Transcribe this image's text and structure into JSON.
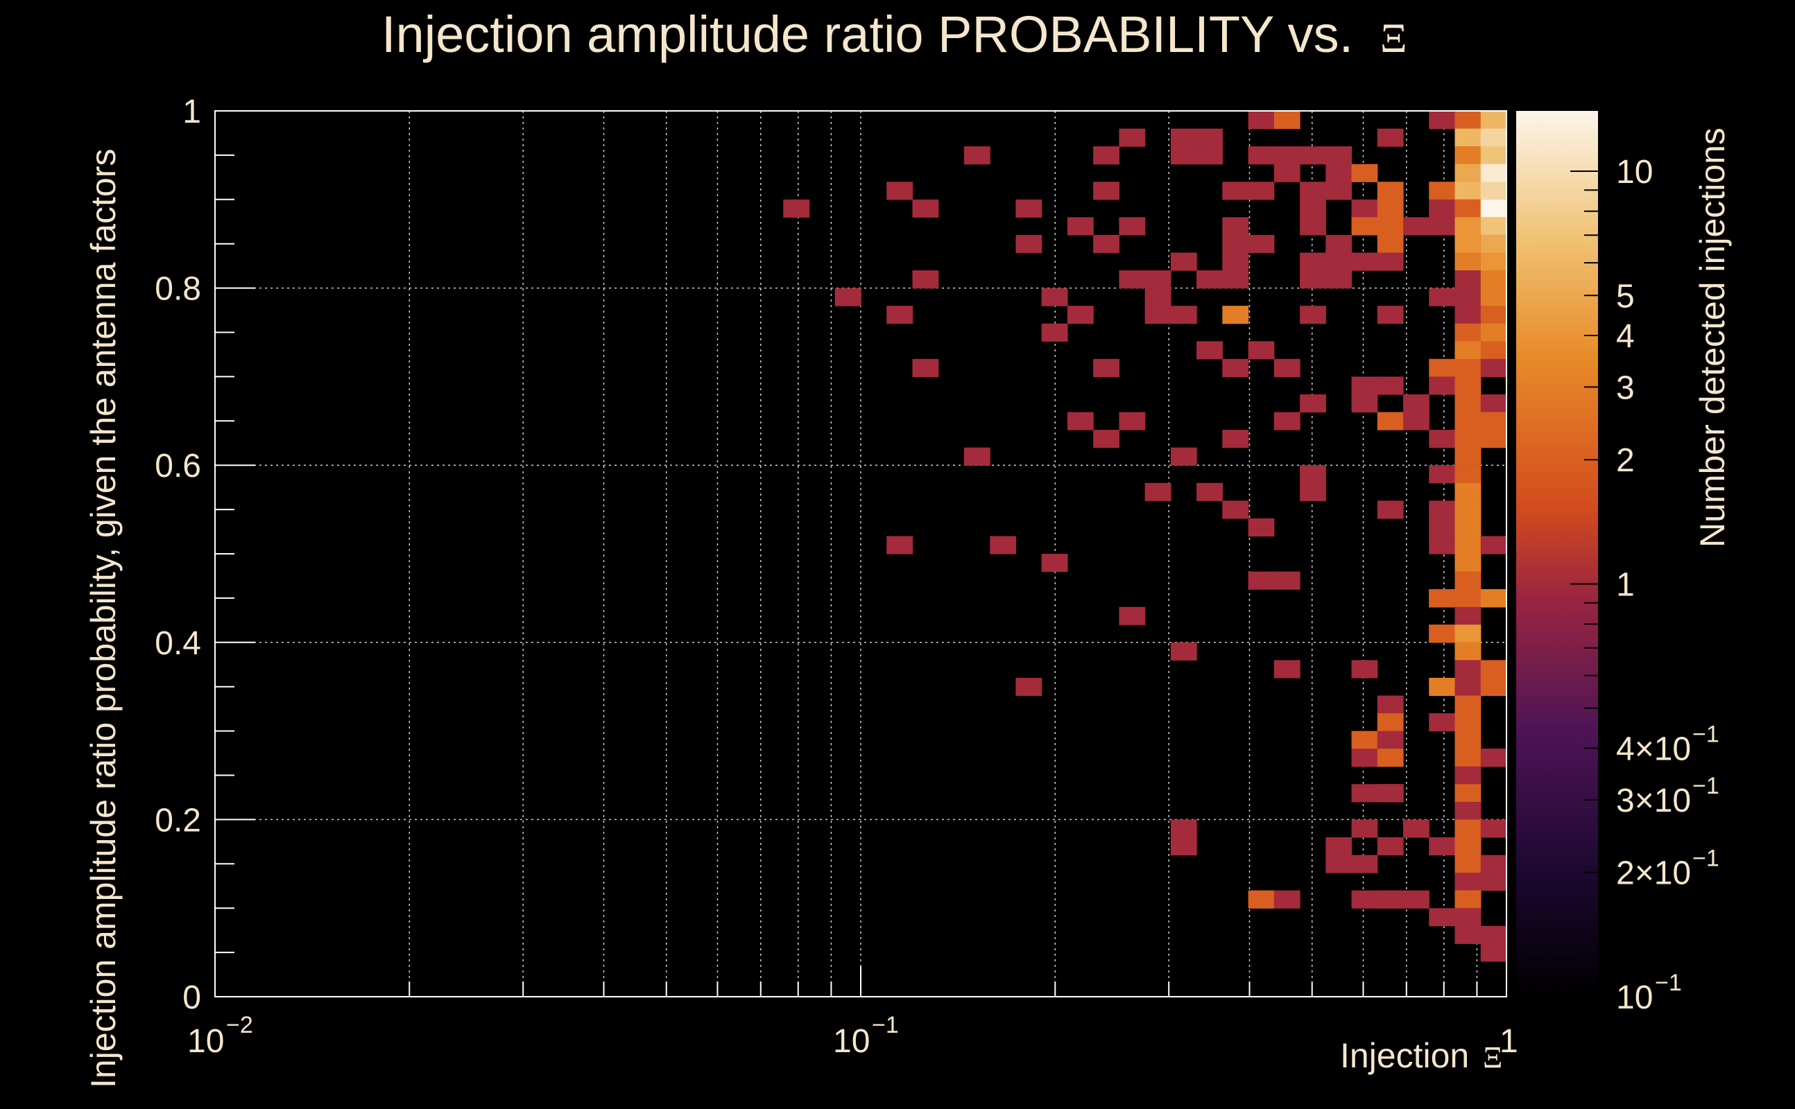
{
  "chart_data": {
    "type": "heatmap",
    "title": "Injection amplitude ratio PROBABILITY vs.",
    "title_symbol": "Ξ",
    "xlabel": "Injection",
    "xlabel_symbol": "Ξ",
    "ylabel": "Injection amplitude ratio probability, given the antenna factors",
    "zlabel": "Number detected injections",
    "x_scale": "log",
    "xlim": [
      0.01,
      1
    ],
    "ylim": [
      0,
      1
    ],
    "z_scale": "log",
    "zlim": [
      0.1,
      14
    ],
    "x_bins": 50,
    "y_bins": 50,
    "x_tick_labels": [
      {
        "value": 0.01,
        "base": "10",
        "exp": "−2"
      },
      {
        "value": 0.1,
        "base": "10",
        "exp": "−1"
      },
      {
        "value": 1,
        "base": "1",
        "exp": ""
      }
    ],
    "y_tick_labels": [
      "0",
      "0.2",
      "0.4",
      "0.6",
      "0.8",
      "1"
    ],
    "colorbar_tick_labels": [
      {
        "value": 0.1,
        "mant": "",
        "base": "10",
        "exp": "−1"
      },
      {
        "value": 0.2,
        "mant": "2×",
        "base": "10",
        "exp": "−1"
      },
      {
        "value": 0.3,
        "mant": "3×",
        "base": "10",
        "exp": "−1"
      },
      {
        "value": 0.4,
        "mant": "4×",
        "base": "10",
        "exp": "−1"
      },
      {
        "value": 1,
        "mant": "",
        "base": "1",
        "exp": ""
      },
      {
        "value": 2,
        "mant": "",
        "base": "2",
        "exp": ""
      },
      {
        "value": 3,
        "mant": "",
        "base": "3",
        "exp": ""
      },
      {
        "value": 4,
        "mant": "",
        "base": "4",
        "exp": ""
      },
      {
        "value": 5,
        "mant": "",
        "base": "5",
        "exp": ""
      },
      {
        "value": 10,
        "mant": "",
        "base": "10",
        "exp": ""
      }
    ],
    "grid": true,
    "colormap": [
      "#000000",
      "#2a0a3a",
      "#6a1a5a",
      "#a82a3a",
      "#d8501c",
      "#e8902a",
      "#f0c070",
      "#f8f0e0"
    ],
    "cells": [
      {
        "x": 0.42,
        "y": 0.99,
        "z": 1
      },
      {
        "x": 0.46,
        "y": 0.99,
        "z": 2
      },
      {
        "x": 0.76,
        "y": 0.99,
        "z": 1
      },
      {
        "x": 0.84,
        "y": 0.99,
        "z": 1
      },
      {
        "x": 0.88,
        "y": 0.99,
        "z": 2
      },
      {
        "x": 0.96,
        "y": 0.99,
        "z": 6
      },
      {
        "x": 0.27,
        "y": 0.97,
        "z": 1
      },
      {
        "x": 0.32,
        "y": 0.97,
        "z": 1
      },
      {
        "x": 0.35,
        "y": 0.97,
        "z": 1
      },
      {
        "x": 0.69,
        "y": 0.97,
        "z": 1
      },
      {
        "x": 0.88,
        "y": 0.97,
        "z": 6
      },
      {
        "x": 0.96,
        "y": 0.97,
        "z": 9
      },
      {
        "x": 0.15,
        "y": 0.95,
        "z": 1
      },
      {
        "x": 0.24,
        "y": 0.95,
        "z": 1
      },
      {
        "x": 0.32,
        "y": 0.95,
        "z": 1
      },
      {
        "x": 0.35,
        "y": 0.95,
        "z": 1
      },
      {
        "x": 0.42,
        "y": 0.95,
        "z": 1
      },
      {
        "x": 0.46,
        "y": 0.95,
        "z": 1
      },
      {
        "x": 0.5,
        "y": 0.95,
        "z": 1
      },
      {
        "x": 0.55,
        "y": 0.95,
        "z": 1
      },
      {
        "x": 0.84,
        "y": 0.95,
        "z": 1
      },
      {
        "x": 0.88,
        "y": 0.95,
        "z": 3
      },
      {
        "x": 0.96,
        "y": 0.95,
        "z": 7
      },
      {
        "x": 0.46,
        "y": 0.93,
        "z": 1
      },
      {
        "x": 0.55,
        "y": 0.93,
        "z": 1
      },
      {
        "x": 0.6,
        "y": 0.93,
        "z": 2
      },
      {
        "x": 0.88,
        "y": 0.93,
        "z": 5
      },
      {
        "x": 0.96,
        "y": 0.93,
        "z": 12
      },
      {
        "x": 0.12,
        "y": 0.91,
        "z": 1
      },
      {
        "x": 0.24,
        "y": 0.91,
        "z": 1
      },
      {
        "x": 0.38,
        "y": 0.91,
        "z": 1
      },
      {
        "x": 0.42,
        "y": 0.91,
        "z": 1
      },
      {
        "x": 0.5,
        "y": 0.91,
        "z": 1
      },
      {
        "x": 0.55,
        "y": 0.91,
        "z": 1
      },
      {
        "x": 0.69,
        "y": 0.91,
        "z": 2
      },
      {
        "x": 0.76,
        "y": 0.91,
        "z": 2
      },
      {
        "x": 0.84,
        "y": 0.91,
        "z": 2
      },
      {
        "x": 0.88,
        "y": 0.91,
        "z": 6
      },
      {
        "x": 0.96,
        "y": 0.91,
        "z": 9
      },
      {
        "x": 0.08,
        "y": 0.89,
        "z": 1
      },
      {
        "x": 0.13,
        "y": 0.89,
        "z": 1
      },
      {
        "x": 0.18,
        "y": 0.89,
        "z": 1
      },
      {
        "x": 0.5,
        "y": 0.89,
        "z": 1
      },
      {
        "x": 0.6,
        "y": 0.89,
        "z": 1
      },
      {
        "x": 0.65,
        "y": 0.89,
        "z": 2
      },
      {
        "x": 0.8,
        "y": 0.89,
        "z": 1
      },
      {
        "x": 0.84,
        "y": 0.89,
        "z": 1
      },
      {
        "x": 0.88,
        "y": 0.89,
        "z": 2
      },
      {
        "x": 0.92,
        "y": 0.89,
        "z": 3
      },
      {
        "x": 0.96,
        "y": 0.89,
        "z": 14
      },
      {
        "x": 0.21,
        "y": 0.87,
        "z": 1
      },
      {
        "x": 0.27,
        "y": 0.87,
        "z": 1
      },
      {
        "x": 0.38,
        "y": 0.87,
        "z": 1
      },
      {
        "x": 0.5,
        "y": 0.87,
        "z": 1
      },
      {
        "x": 0.6,
        "y": 0.87,
        "z": 2
      },
      {
        "x": 0.65,
        "y": 0.87,
        "z": 2
      },
      {
        "x": 0.73,
        "y": 0.87,
        "z": 1
      },
      {
        "x": 0.8,
        "y": 0.87,
        "z": 1
      },
      {
        "x": 0.88,
        "y": 0.87,
        "z": 4
      },
      {
        "x": 0.92,
        "y": 0.87,
        "z": 2
      },
      {
        "x": 0.96,
        "y": 0.87,
        "z": 7
      },
      {
        "x": 0.18,
        "y": 0.85,
        "z": 1
      },
      {
        "x": 0.24,
        "y": 0.85,
        "z": 1
      },
      {
        "x": 0.38,
        "y": 0.85,
        "z": 1
      },
      {
        "x": 0.42,
        "y": 0.85,
        "z": 1
      },
      {
        "x": 0.57,
        "y": 0.85,
        "z": 1
      },
      {
        "x": 0.65,
        "y": 0.85,
        "z": 2
      },
      {
        "x": 0.88,
        "y": 0.85,
        "z": 4
      },
      {
        "x": 0.92,
        "y": 0.85,
        "z": 1
      },
      {
        "x": 0.96,
        "y": 0.85,
        "z": 5
      },
      {
        "x": 0.32,
        "y": 0.83,
        "z": 1
      },
      {
        "x": 0.38,
        "y": 0.83,
        "z": 1
      },
      {
        "x": 0.5,
        "y": 0.83,
        "z": 1
      },
      {
        "x": 0.57,
        "y": 0.83,
        "z": 1
      },
      {
        "x": 0.6,
        "y": 0.83,
        "z": 1
      },
      {
        "x": 0.69,
        "y": 0.83,
        "z": 1
      },
      {
        "x": 0.88,
        "y": 0.83,
        "z": 3
      },
      {
        "x": 0.92,
        "y": 0.83,
        "z": 1
      },
      {
        "x": 0.96,
        "y": 0.83,
        "z": 4
      },
      {
        "x": 0.13,
        "y": 0.81,
        "z": 1
      },
      {
        "x": 0.27,
        "y": 0.81,
        "z": 1
      },
      {
        "x": 0.29,
        "y": 0.81,
        "z": 1
      },
      {
        "x": 0.35,
        "y": 0.81,
        "z": 1
      },
      {
        "x": 0.38,
        "y": 0.81,
        "z": 1
      },
      {
        "x": 0.5,
        "y": 0.81,
        "z": 1
      },
      {
        "x": 0.55,
        "y": 0.81,
        "z": 1
      },
      {
        "x": 0.88,
        "y": 0.81,
        "z": 1
      },
      {
        "x": 0.96,
        "y": 0.81,
        "z": 3
      },
      {
        "x": 0.095,
        "y": 0.79,
        "z": 1
      },
      {
        "x": 0.2,
        "y": 0.79,
        "z": 1
      },
      {
        "x": 0.29,
        "y": 0.79,
        "z": 1
      },
      {
        "x": 0.8,
        "y": 0.79,
        "z": 1
      },
      {
        "x": 0.84,
        "y": 0.79,
        "z": 1
      },
      {
        "x": 0.88,
        "y": 0.79,
        "z": 1
      },
      {
        "x": 0.92,
        "y": 0.79,
        "z": 1
      },
      {
        "x": 0.96,
        "y": 0.79,
        "z": 3
      },
      {
        "x": 0.115,
        "y": 0.77,
        "z": 1
      },
      {
        "x": 0.22,
        "y": 0.77,
        "z": 1
      },
      {
        "x": 0.29,
        "y": 0.77,
        "z": 1
      },
      {
        "x": 0.32,
        "y": 0.77,
        "z": 1
      },
      {
        "x": 0.38,
        "y": 0.77,
        "z": 3
      },
      {
        "x": 0.5,
        "y": 0.77,
        "z": 1
      },
      {
        "x": 0.65,
        "y": 0.77,
        "z": 1
      },
      {
        "x": 0.88,
        "y": 0.77,
        "z": 1
      },
      {
        "x": 0.92,
        "y": 0.77,
        "z": 2
      },
      {
        "x": 0.2,
        "y": 0.75,
        "z": 1
      },
      {
        "x": 0.88,
        "y": 0.75,
        "z": 2
      },
      {
        "x": 0.96,
        "y": 0.75,
        "z": 3
      },
      {
        "x": 0.35,
        "y": 0.73,
        "z": 1
      },
      {
        "x": 0.42,
        "y": 0.73,
        "z": 1
      },
      {
        "x": 0.84,
        "y": 0.73,
        "z": 2
      },
      {
        "x": 0.88,
        "y": 0.73,
        "z": 3
      },
      {
        "x": 0.96,
        "y": 0.73,
        "z": 2
      },
      {
        "x": 0.13,
        "y": 0.71,
        "z": 1
      },
      {
        "x": 0.24,
        "y": 0.71,
        "z": 1
      },
      {
        "x": 0.38,
        "y": 0.71,
        "z": 1
      },
      {
        "x": 0.46,
        "y": 0.71,
        "z": 1
      },
      {
        "x": 0.76,
        "y": 0.71,
        "z": 2
      },
      {
        "x": 0.88,
        "y": 0.71,
        "z": 2
      },
      {
        "x": 0.96,
        "y": 0.71,
        "z": 1
      },
      {
        "x": 0.6,
        "y": 0.69,
        "z": 1
      },
      {
        "x": 0.65,
        "y": 0.69,
        "z": 1
      },
      {
        "x": 0.8,
        "y": 0.69,
        "z": 1
      },
      {
        "x": 0.88,
        "y": 0.69,
        "z": 2
      },
      {
        "x": 0.5,
        "y": 0.67,
        "z": 1
      },
      {
        "x": 0.6,
        "y": 0.67,
        "z": 1
      },
      {
        "x": 0.73,
        "y": 0.67,
        "z": 1
      },
      {
        "x": 0.84,
        "y": 0.67,
        "z": 1
      },
      {
        "x": 0.88,
        "y": 0.67,
        "z": 2
      },
      {
        "x": 0.92,
        "y": 0.67,
        "z": 1
      },
      {
        "x": 0.22,
        "y": 0.65,
        "z": 1
      },
      {
        "x": 0.27,
        "y": 0.65,
        "z": 1
      },
      {
        "x": 0.46,
        "y": 0.65,
        "z": 1
      },
      {
        "x": 0.69,
        "y": 0.65,
        "z": 2
      },
      {
        "x": 0.73,
        "y": 0.65,
        "z": 1
      },
      {
        "x": 0.88,
        "y": 0.65,
        "z": 2
      },
      {
        "x": 0.96,
        "y": 0.65,
        "z": 2
      },
      {
        "x": 0.24,
        "y": 0.63,
        "z": 1
      },
      {
        "x": 0.38,
        "y": 0.63,
        "z": 1
      },
      {
        "x": 0.8,
        "y": 0.63,
        "z": 1
      },
      {
        "x": 0.84,
        "y": 0.63,
        "z": 1
      },
      {
        "x": 0.88,
        "y": 0.63,
        "z": 2
      },
      {
        "x": 0.96,
        "y": 0.63,
        "z": 2
      },
      {
        "x": 0.15,
        "y": 0.61,
        "z": 1
      },
      {
        "x": 0.32,
        "y": 0.61,
        "z": 1
      },
      {
        "x": 0.84,
        "y": 0.61,
        "z": 4
      },
      {
        "x": 0.88,
        "y": 0.61,
        "z": 2
      },
      {
        "x": 0.5,
        "y": 0.59,
        "z": 1
      },
      {
        "x": 0.8,
        "y": 0.59,
        "z": 1
      },
      {
        "x": 0.84,
        "y": 0.59,
        "z": 1
      },
      {
        "x": 0.88,
        "y": 0.59,
        "z": 2
      },
      {
        "x": 0.29,
        "y": 0.57,
        "z": 1
      },
      {
        "x": 0.35,
        "y": 0.57,
        "z": 1
      },
      {
        "x": 0.5,
        "y": 0.57,
        "z": 1
      },
      {
        "x": 0.84,
        "y": 0.57,
        "z": 2
      },
      {
        "x": 0.88,
        "y": 0.57,
        "z": 3
      },
      {
        "x": 0.38,
        "y": 0.55,
        "z": 1
      },
      {
        "x": 0.65,
        "y": 0.55,
        "z": 1
      },
      {
        "x": 0.8,
        "y": 0.55,
        "z": 1
      },
      {
        "x": 0.84,
        "y": 0.55,
        "z": 1
      },
      {
        "x": 0.88,
        "y": 0.55,
        "z": 3
      },
      {
        "x": 0.42,
        "y": 0.53,
        "z": 1
      },
      {
        "x": 0.76,
        "y": 0.53,
        "z": 1
      },
      {
        "x": 0.88,
        "y": 0.53,
        "z": 3
      },
      {
        "x": 0.12,
        "y": 0.51,
        "z": 1
      },
      {
        "x": 0.165,
        "y": 0.51,
        "z": 1
      },
      {
        "x": 0.8,
        "y": 0.51,
        "z": 1
      },
      {
        "x": 0.88,
        "y": 0.51,
        "z": 3
      },
      {
        "x": 0.96,
        "y": 0.51,
        "z": 1
      },
      {
        "x": 0.2,
        "y": 0.49,
        "z": 1
      },
      {
        "x": 0.84,
        "y": 0.49,
        "z": 1
      },
      {
        "x": 0.88,
        "y": 0.49,
        "z": 3
      },
      {
        "x": 0.42,
        "y": 0.47,
        "z": 1
      },
      {
        "x": 0.46,
        "y": 0.47,
        "z": 1
      },
      {
        "x": 0.88,
        "y": 0.47,
        "z": 2
      },
      {
        "x": 0.76,
        "y": 0.45,
        "z": 2
      },
      {
        "x": 0.8,
        "y": 0.45,
        "z": 2
      },
      {
        "x": 0.84,
        "y": 0.45,
        "z": 2
      },
      {
        "x": 0.88,
        "y": 0.45,
        "z": 2
      },
      {
        "x": 0.92,
        "y": 0.45,
        "z": 2
      },
      {
        "x": 0.96,
        "y": 0.45,
        "z": 3
      },
      {
        "x": 0.27,
        "y": 0.43,
        "z": 1
      },
      {
        "x": 0.88,
        "y": 0.43,
        "z": 1
      },
      {
        "x": 0.76,
        "y": 0.41,
        "z": 3
      },
      {
        "x": 0.8,
        "y": 0.41,
        "z": 2
      },
      {
        "x": 0.84,
        "y": 0.41,
        "z": 1
      },
      {
        "x": 0.88,
        "y": 0.41,
        "z": 4
      },
      {
        "x": 0.32,
        "y": 0.39,
        "z": 1
      },
      {
        "x": 0.84,
        "y": 0.39,
        "z": 3
      },
      {
        "x": 0.88,
        "y": 0.39,
        "z": 3
      },
      {
        "x": 0.46,
        "y": 0.37,
        "z": 1
      },
      {
        "x": 0.6,
        "y": 0.37,
        "z": 1
      },
      {
        "x": 0.88,
        "y": 0.37,
        "z": 1
      },
      {
        "x": 0.96,
        "y": 0.37,
        "z": 2
      },
      {
        "x": 0.18,
        "y": 0.35,
        "z": 1
      },
      {
        "x": 0.76,
        "y": 0.35,
        "z": 3
      },
      {
        "x": 0.88,
        "y": 0.35,
        "z": 1
      },
      {
        "x": 0.92,
        "y": 0.35,
        "z": 2
      },
      {
        "x": 0.69,
        "y": 0.33,
        "z": 1
      },
      {
        "x": 0.88,
        "y": 0.33,
        "z": 2
      },
      {
        "x": 0.65,
        "y": 0.31,
        "z": 2
      },
      {
        "x": 0.8,
        "y": 0.31,
        "z": 1
      },
      {
        "x": 0.88,
        "y": 0.31,
        "z": 2
      },
      {
        "x": 0.6,
        "y": 0.29,
        "z": 2
      },
      {
        "x": 0.69,
        "y": 0.29,
        "z": 1
      },
      {
        "x": 0.88,
        "y": 0.29,
        "z": 2
      },
      {
        "x": 0.6,
        "y": 0.27,
        "z": 1
      },
      {
        "x": 0.65,
        "y": 0.27,
        "z": 2
      },
      {
        "x": 0.88,
        "y": 0.27,
        "z": 2
      },
      {
        "x": 0.92,
        "y": 0.27,
        "z": 2
      },
      {
        "x": 0.96,
        "y": 0.27,
        "z": 1
      },
      {
        "x": 0.88,
        "y": 0.25,
        "z": 1
      },
      {
        "x": 0.6,
        "y": 0.23,
        "z": 1
      },
      {
        "x": 0.65,
        "y": 0.23,
        "z": 2
      },
      {
        "x": 0.69,
        "y": 0.23,
        "z": 1
      },
      {
        "x": 0.88,
        "y": 0.23,
        "z": 2
      },
      {
        "x": 0.88,
        "y": 0.21,
        "z": 1
      },
      {
        "x": 0.32,
        "y": 0.19,
        "z": 1
      },
      {
        "x": 0.6,
        "y": 0.19,
        "z": 1
      },
      {
        "x": 0.73,
        "y": 0.19,
        "z": 1
      },
      {
        "x": 0.88,
        "y": 0.19,
        "z": 2
      },
      {
        "x": 0.92,
        "y": 0.19,
        "z": 1
      },
      {
        "x": 0.32,
        "y": 0.17,
        "z": 1
      },
      {
        "x": 0.55,
        "y": 0.17,
        "z": 1
      },
      {
        "x": 0.69,
        "y": 0.17,
        "z": 1
      },
      {
        "x": 0.76,
        "y": 0.17,
        "z": 1
      },
      {
        "x": 0.84,
        "y": 0.17,
        "z": 2
      },
      {
        "x": 0.88,
        "y": 0.17,
        "z": 2
      },
      {
        "x": 0.57,
        "y": 0.15,
        "z": 1
      },
      {
        "x": 0.6,
        "y": 0.15,
        "z": 1
      },
      {
        "x": 0.84,
        "y": 0.15,
        "z": 2
      },
      {
        "x": 0.88,
        "y": 0.15,
        "z": 2
      },
      {
        "x": 0.96,
        "y": 0.15,
        "z": 1
      },
      {
        "x": 0.88,
        "y": 0.13,
        "z": 1
      },
      {
        "x": 0.96,
        "y": 0.13,
        "z": 1
      },
      {
        "x": 0.42,
        "y": 0.11,
        "z": 2
      },
      {
        "x": 0.46,
        "y": 0.11,
        "z": 1
      },
      {
        "x": 0.6,
        "y": 0.11,
        "z": 1
      },
      {
        "x": 0.65,
        "y": 0.11,
        "z": 1
      },
      {
        "x": 0.69,
        "y": 0.11,
        "z": 1
      },
      {
        "x": 0.73,
        "y": 0.11,
        "z": 1
      },
      {
        "x": 0.84,
        "y": 0.11,
        "z": 2
      },
      {
        "x": 0.88,
        "y": 0.11,
        "z": 2
      },
      {
        "x": 0.8,
        "y": 0.09,
        "z": 1
      },
      {
        "x": 0.84,
        "y": 0.09,
        "z": 1
      },
      {
        "x": 0.88,
        "y": 0.09,
        "z": 1
      },
      {
        "x": 0.88,
        "y": 0.07,
        "z": 1
      },
      {
        "x": 0.96,
        "y": 0.07,
        "z": 1
      },
      {
        "x": 0.96,
        "y": 0.05,
        "z": 1
      }
    ]
  }
}
